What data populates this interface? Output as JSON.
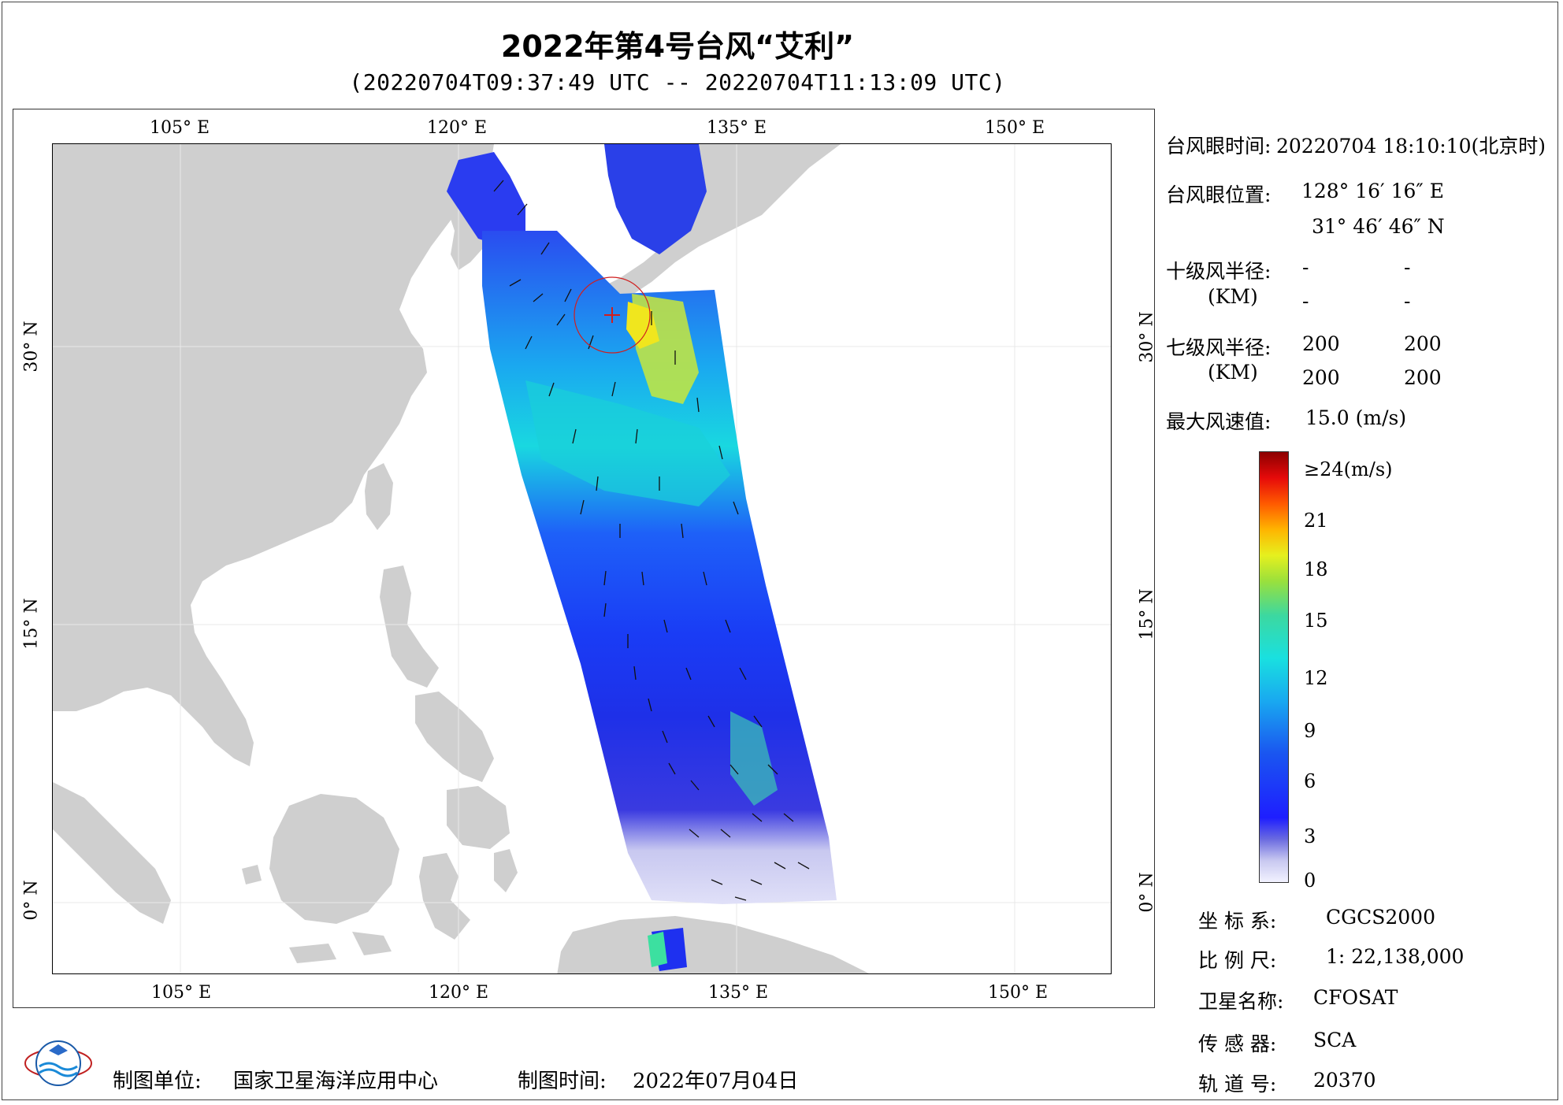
{
  "title": "2022年第4号台风“艾利”",
  "subtitle": "(20220704T09:37:49 UTC -- 20220704T11:13:09 UTC)",
  "axes": {
    "top_ticks": [
      "105° E",
      "120° E",
      "135° E",
      "150° E"
    ],
    "bottom_ticks": [
      "105° E",
      "120° E",
      "135° E",
      "150° E"
    ],
    "left_ticks": [
      "30° N",
      "15° N",
      "0° N"
    ],
    "right_ticks": [
      "30° N",
      "15° N",
      "0° N"
    ]
  },
  "info": {
    "eye_time_label": "台风眼时间:",
    "eye_time_value": "20220704 18:10:10(北京时)",
    "eye_pos_label": "台风眼位置:",
    "eye_lon": "128° 16′ 16″ E",
    "eye_lat": "31° 46′ 46″ N",
    "r10_label": "十级风半径:",
    "r10_unit": "(KM)",
    "r10_values": [
      "-",
      "-",
      "-",
      "-"
    ],
    "r7_label": "七级风半径:",
    "r7_unit": "(KM)",
    "r7_values": [
      "200",
      "200",
      "200",
      "200"
    ],
    "max_wind_label": "最大风速值:",
    "max_wind_value": "15.0  (m/s)"
  },
  "colorbar": {
    "labels": [
      "≥24(m/s)",
      "21",
      "18",
      "15",
      "12",
      "9",
      "6",
      "3",
      "0"
    ],
    "colors": [
      "#8c0000",
      "#e60a0a",
      "#ff5a00",
      "#ffb400",
      "#e6f01e",
      "#9ae03c",
      "#19e0e0",
      "#19a8f0",
      "#1e1eff",
      "#c8c8f0"
    ]
  },
  "meta": {
    "crs_label": "坐 标 系:",
    "crs_value": "CGCS2000",
    "scale_label": "比 例 尺:",
    "scale_value": "1: 22,138,000",
    "sat_label": "卫星名称:",
    "sat_value": "CFOSAT",
    "sensor_label": "传 感 器:",
    "sensor_value": "SCA",
    "orbit_label": "轨 道 号:",
    "orbit_value": "20370"
  },
  "footer": {
    "producer_label": "制图单位:",
    "producer_value": "国家卫星海洋应用中心",
    "date_label": "制图时间:",
    "date_value": "2022年07月04日"
  }
}
